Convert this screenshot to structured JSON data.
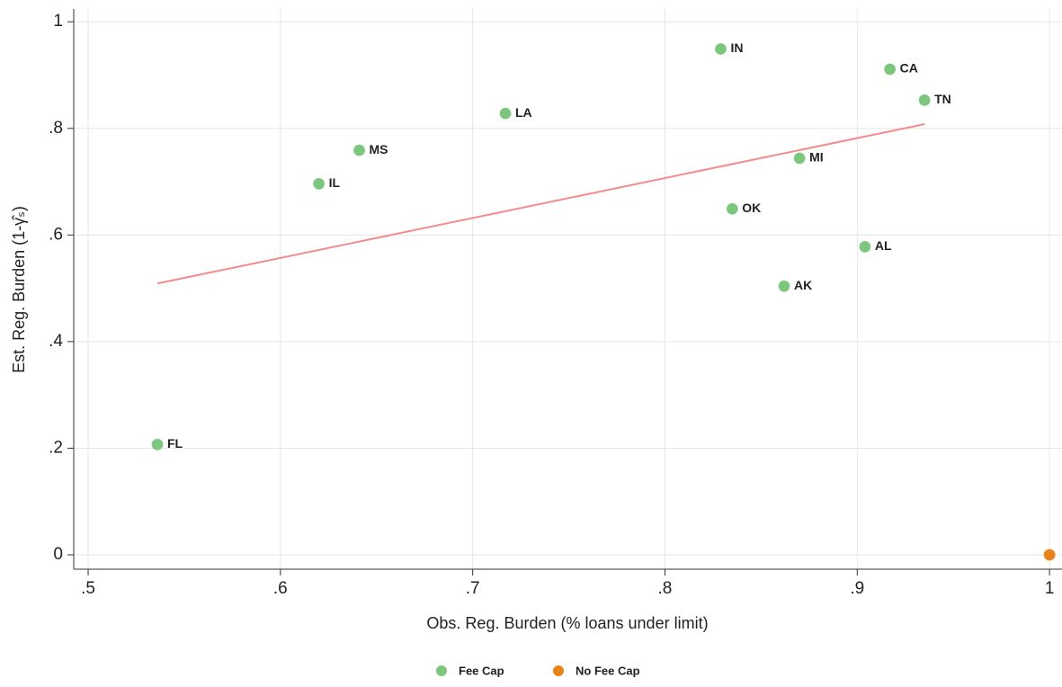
{
  "chart_data": {
    "type": "scatter",
    "x_label": "Obs. Reg. Burden (% loans under limit)",
    "y_label": "Est. Reg. Burden (1-γ̂ₛ)",
    "xlim": [
      0.4925,
      1.0065
    ],
    "ylim": [
      -0.027,
      1.024
    ],
    "xticks": [
      {
        "value": 0.5,
        "label": ".5"
      },
      {
        "value": 0.6,
        "label": ".6"
      },
      {
        "value": 0.7,
        "label": ".7"
      },
      {
        "value": 0.8,
        "label": ".8"
      },
      {
        "value": 0.9,
        "label": ".9"
      },
      1
    ],
    "yticks": [
      0,
      {
        "value": 0.2,
        "label": ".2"
      },
      {
        "value": 0.4,
        "label": ".4"
      },
      {
        "value": 0.6,
        "label": ".6"
      },
      {
        "value": 0.8,
        "label": ".8"
      },
      1
    ],
    "grid": true,
    "series": [
      {
        "name": "Fee Cap",
        "color": "#7dc67d",
        "x": [
          0.536,
          0.62,
          0.641,
          0.717,
          0.829,
          0.835,
          0.862,
          0.87,
          0.904,
          0.917,
          0.935
        ],
        "values": [
          0.207,
          0.696,
          0.759,
          0.828,
          0.949,
          0.649,
          0.504,
          0.744,
          0.578,
          0.911,
          0.853
        ],
        "point_labels": [
          "FL",
          "IL",
          "MS",
          "LA",
          "IN",
          "OK",
          "AK",
          "MI",
          "AL",
          "CA",
          "TN"
        ]
      },
      {
        "name": "No Fee Cap",
        "color": "#e8821a",
        "x": [
          1
        ],
        "values": [
          0
        ]
      }
    ],
    "fit_line": {
      "color": "#f48a8a",
      "x": [
        0.536,
        0.935
      ],
      "values": [
        0.509,
        0.808
      ]
    }
  }
}
